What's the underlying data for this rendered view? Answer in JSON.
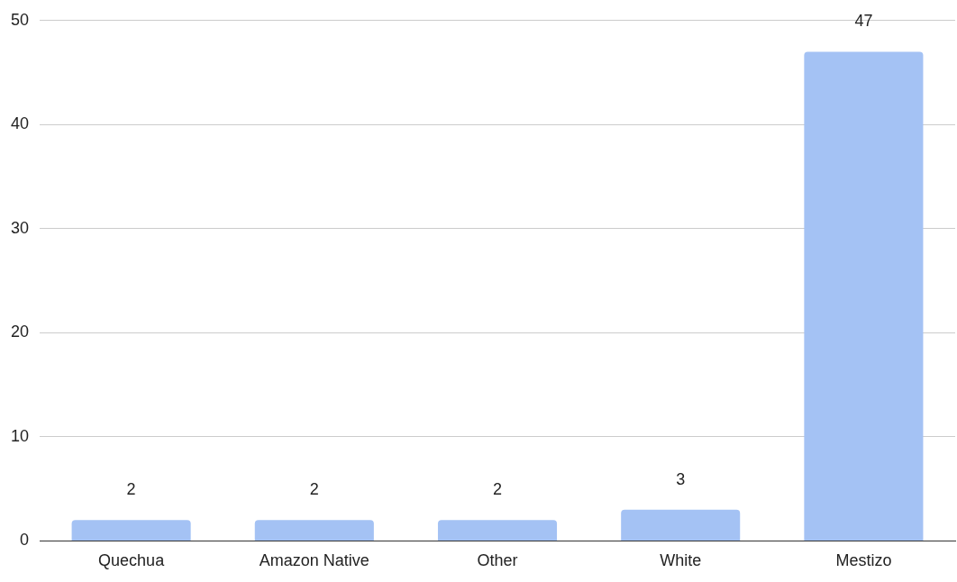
{
  "chart_data": {
    "type": "bar",
    "categories": [
      "Quechua",
      "Amazon Native",
      "Other",
      "White",
      "Mestizo"
    ],
    "values": [
      2,
      2,
      2,
      3,
      47
    ],
    "color": "#a4c2f4",
    "ylim": [
      0,
      50
    ],
    "yticks": [
      0,
      10,
      20,
      30,
      40,
      50
    ],
    "grid": "y",
    "data_labels": true
  }
}
